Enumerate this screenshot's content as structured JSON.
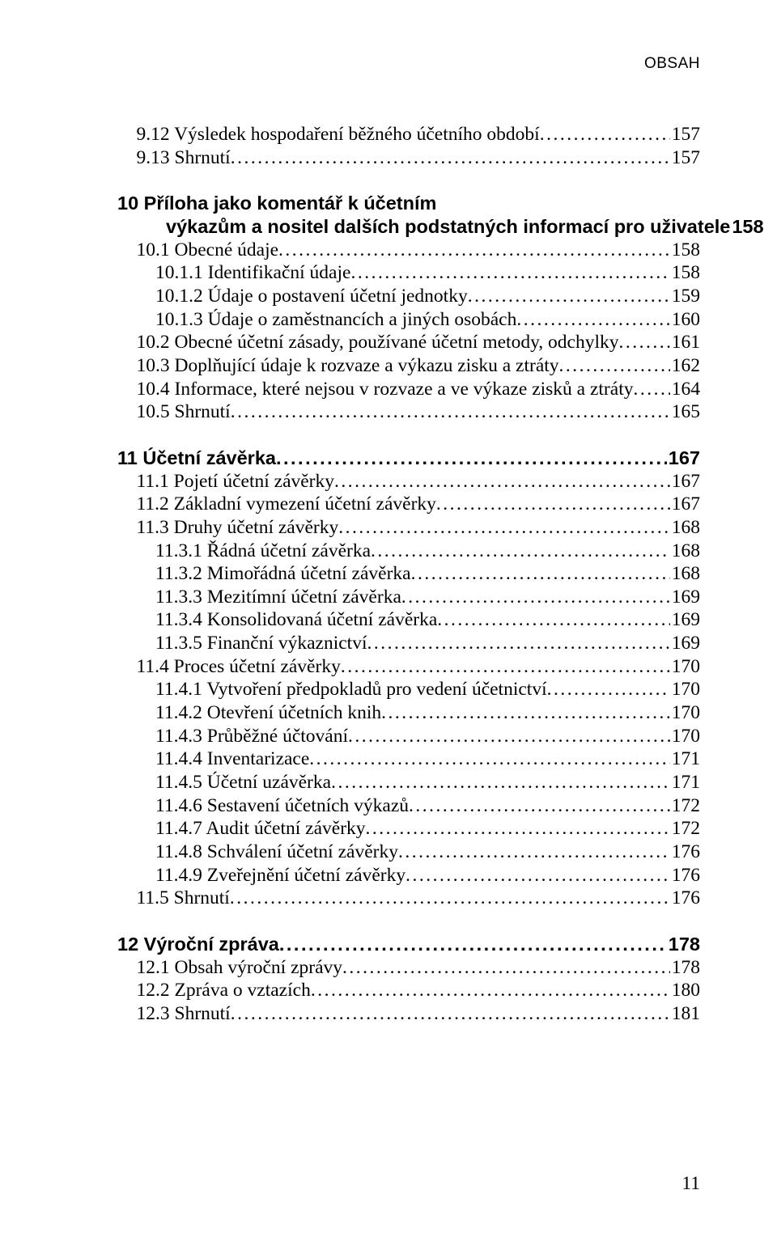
{
  "header": "OBSAH",
  "footer_page": "11",
  "typography": {
    "body_font": "Times New Roman",
    "bold_font": "Arial",
    "body_fontsize_pt": 18,
    "header_fontsize_pt": 14,
    "text_color": "#000000",
    "background_color": "#ffffff"
  },
  "blocks": [
    {
      "gap_before": false,
      "lines": [
        {
          "lead": "    ",
          "title": "9.12 Výsledek hospodaření běžného účetního období",
          "page": "157",
          "bold": false
        },
        {
          "lead": "    ",
          "title": "9.13 Shrnutí",
          "page": "157",
          "bold": false
        }
      ]
    },
    {
      "gap_before": true,
      "lines": [
        {
          "lead": "",
          "title": "10 Příloha jako komentář k účetním",
          "page": null,
          "bold": true
        },
        {
          "lead": "",
          "title": "výkazům a nositel dalších podstatných informací pro uživatele",
          "page": "158",
          "bold": true,
          "continuation": true
        },
        {
          "lead": "    ",
          "title": "10.1 Obecné údaje",
          "page": "158",
          "bold": false
        },
        {
          "lead": "        ",
          "title": "10.1.1 Identifikační údaje",
          "page": "158",
          "bold": false
        },
        {
          "lead": "        ",
          "title": "10.1.2 Údaje o postavení účetní jednotky",
          "page": "159",
          "bold": false
        },
        {
          "lead": "        ",
          "title": "10.1.3 Údaje o zaměstnancích a jiných osobách",
          "page": "160",
          "bold": false
        },
        {
          "lead": "    ",
          "title": "10.2 Obecné účetní zásady, používané účetní metody, odchylky",
          "page": "161",
          "bold": false
        },
        {
          "lead": "    ",
          "title": "10.3 Doplňující údaje k rozvaze a výkazu zisku a ztráty",
          "page": "162",
          "bold": false
        },
        {
          "lead": "    ",
          "title": "10.4 Informace, které nejsou v rozvaze a ve výkaze zisků a ztráty",
          "page": "164",
          "bold": false
        },
        {
          "lead": "    ",
          "title": "10.5 Shrnutí",
          "page": "165",
          "bold": false
        }
      ]
    },
    {
      "gap_before": true,
      "lines": [
        {
          "lead": "",
          "title": "11 Účetní závěrka",
          "page": "167",
          "bold": true
        },
        {
          "lead": "    ",
          "title": "11.1 Pojetí účetní závěrky",
          "page": "167",
          "bold": false
        },
        {
          "lead": "    ",
          "title": "11.2 Základní vymezení účetní závěrky",
          "page": "167",
          "bold": false
        },
        {
          "lead": "    ",
          "title": "11.3 Druhy účetní závěrky",
          "page": "168",
          "bold": false
        },
        {
          "lead": "        ",
          "title": "11.3.1 Řádná účetní závěrka",
          "page": "168",
          "bold": false
        },
        {
          "lead": "        ",
          "title": "11.3.2 Mimořádná účetní závěrka",
          "page": "168",
          "bold": false
        },
        {
          "lead": "        ",
          "title": "11.3.3 Mezitímní účetní závěrka",
          "page": "169",
          "bold": false
        },
        {
          "lead": "        ",
          "title": "11.3.4 Konsolidovaná účetní závěrka",
          "page": "169",
          "bold": false
        },
        {
          "lead": "        ",
          "title": "11.3.5 Finanční výkaznictví",
          "page": "169",
          "bold": false
        },
        {
          "lead": "    ",
          "title": "11.4 Proces účetní závěrky",
          "page": "170",
          "bold": false
        },
        {
          "lead": "        ",
          "title": "11.4.1 Vytvoření předpokladů pro vedení účetnictví",
          "page": "170",
          "bold": false
        },
        {
          "lead": "        ",
          "title": "11.4.2 Otevření účetních knih",
          "page": "170",
          "bold": false
        },
        {
          "lead": "        ",
          "title": "11.4.3 Průběžné účtování",
          "page": "170",
          "bold": false
        },
        {
          "lead": "        ",
          "title": "11.4.4 Inventarizace",
          "page": "171",
          "bold": false
        },
        {
          "lead": "        ",
          "title": "11.4.5 Účetní uzávěrka",
          "page": "171",
          "bold": false
        },
        {
          "lead": "        ",
          "title": "11.4.6 Sestavení účetních výkazů",
          "page": "172",
          "bold": false
        },
        {
          "lead": "        ",
          "title": "11.4.7 Audit účetní závěrky",
          "page": "172",
          "bold": false
        },
        {
          "lead": "        ",
          "title": "11.4.8 Schválení účetní závěrky",
          "page": "176",
          "bold": false
        },
        {
          "lead": "        ",
          "title": "11.4.9 Zveřejnění účetní závěrky",
          "page": "176",
          "bold": false
        },
        {
          "lead": "    ",
          "title": "11.5 Shrnutí",
          "page": "176",
          "bold": false
        }
      ]
    },
    {
      "gap_before": true,
      "lines": [
        {
          "lead": "",
          "title": "12 Výroční zpráva",
          "page": "178",
          "bold": true
        },
        {
          "lead": "    ",
          "title": "12.1 Obsah výroční zprávy",
          "page": "178",
          "bold": false
        },
        {
          "lead": "    ",
          "title": "12.2 Zpráva o vztazích",
          "page": "180",
          "bold": false
        },
        {
          "lead": "    ",
          "title": "12.3 Shrnutí",
          "page": "181",
          "bold": false
        }
      ]
    }
  ]
}
